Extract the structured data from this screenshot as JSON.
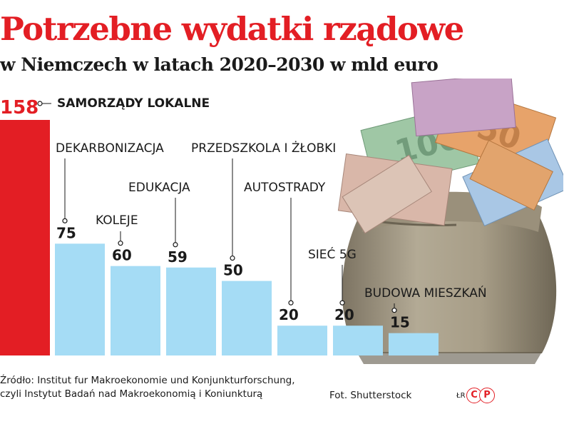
{
  "title": "Potrzebne wydatki rządowe",
  "subtitle": "w Niemczech w latach 2020–2030 w mld euro",
  "chart_data": {
    "type": "bar",
    "categories": [
      "SAMORZĄDY LOKALNE",
      "DEKARBONIZACJA",
      "KOLEJE",
      "EDUKACJA",
      "PRZEDSZKOLA I ŻŁOBKI",
      "AUTOSTRADY",
      "SIEĆ 5G",
      "BUDOWA MIESZKAŃ"
    ],
    "values": [
      158,
      75,
      60,
      59,
      50,
      20,
      20,
      15
    ],
    "value_labels": [
      "158",
      "75",
      "60",
      "59",
      "50",
      "20",
      "20",
      "15"
    ],
    "unit": "mld euro",
    "highlight_color": "#e31e24",
    "bar_color": "#a5dcf5",
    "ylim": [
      0,
      158
    ],
    "grid": false,
    "legend": "none"
  },
  "source_lines": [
    "Źródło: Institut fur Makroekonomie und Konjunkturforschung,",
    "czyli Instytut Badań nad Makroekonomią i Koniunkturą"
  ],
  "photo_credit": "Fot. Shutterstock",
  "author_initials": "ŁR",
  "logo_letters": [
    "C",
    "P"
  ],
  "illustration": "money-bag-with-euro-banknotes-photo"
}
